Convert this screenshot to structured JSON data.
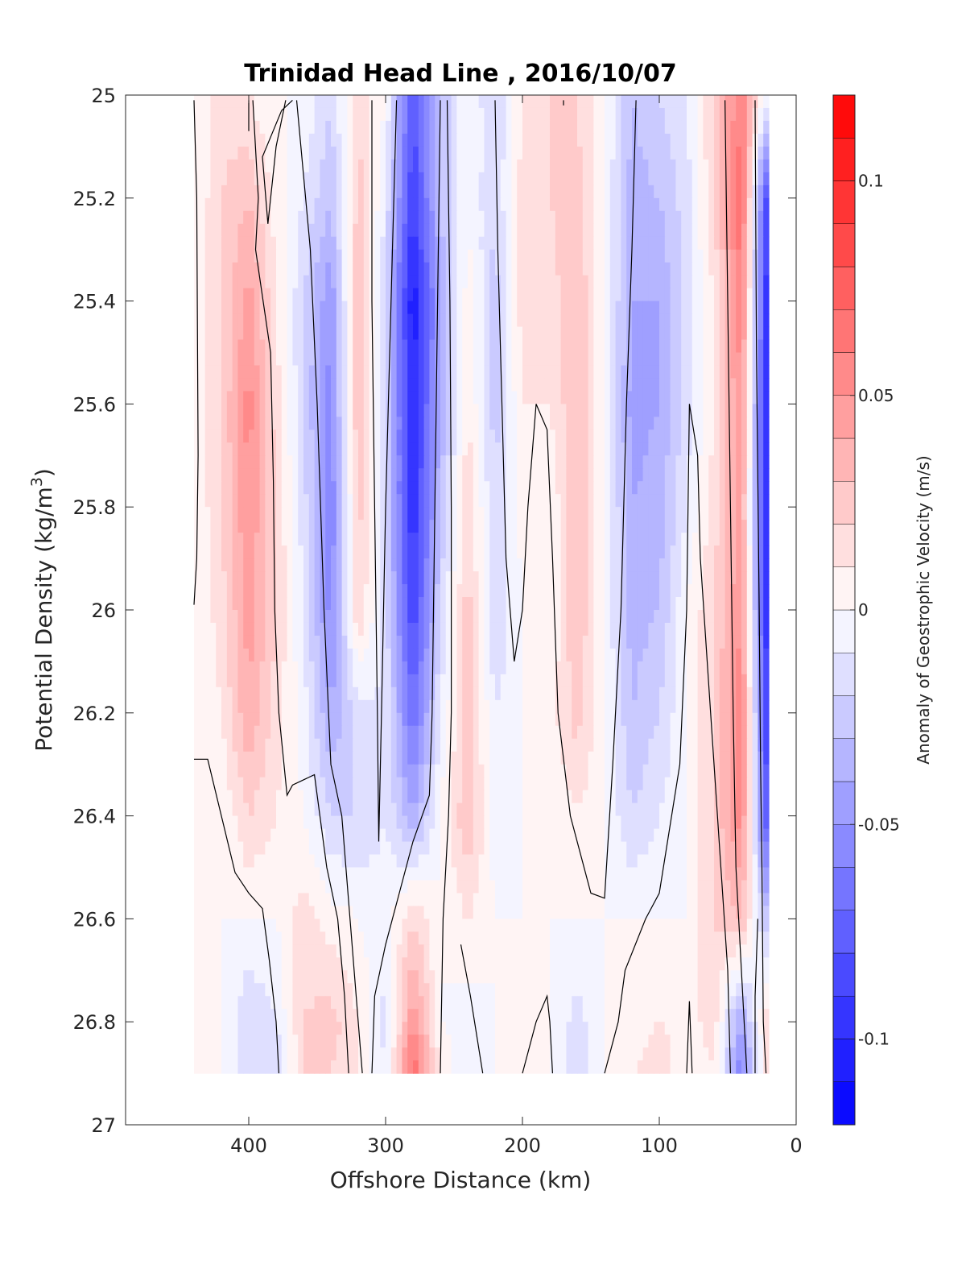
{
  "chart_data": {
    "type": "heatmap",
    "title": "Trinidad Head Line , 2016/10/07",
    "xlabel": "Offshore Distance (km)",
    "ylabel": "Potential Density (kg/m",
    "ylabel_sup": "3",
    "ylabel_close": ")",
    "xlim": [
      490,
      0
    ],
    "ylim": [
      25,
      27
    ],
    "x_reversed": true,
    "y_reversed": true,
    "x_ticks": [
      400,
      300,
      200,
      100,
      0
    ],
    "y_ticks": [
      25,
      25.2,
      25.4,
      25.6,
      25.8,
      26,
      26.2,
      26.4,
      26.6,
      26.8,
      27
    ],
    "colorbar": {
      "label": "Anomaly of Geostrophic Velocity (m/s)",
      "range": [
        -0.12,
        0.12
      ],
      "levels": 24,
      "ticks": [
        0.1,
        0.05,
        0,
        -0.05,
        -0.1
      ],
      "tick_labels": [
        "0.1",
        "0.05",
        "0",
        "-0.05",
        "-0.1"
      ],
      "colors": {
        "positive": "#ff0000",
        "zero": "#ffffff",
        "negative": "#0000ff"
      }
    },
    "data_extent": {
      "x": [
        440,
        20
      ],
      "y": [
        25.0,
        26.9
      ]
    },
    "x": [
      440,
      420,
      400,
      380,
      360,
      340,
      320,
      300,
      280,
      260,
      240,
      220,
      200,
      180,
      160,
      140,
      120,
      100,
      80,
      60,
      40,
      20
    ],
    "y": [
      25.0,
      25.2,
      25.4,
      25.6,
      25.8,
      26.0,
      26.2,
      26.4,
      26.6,
      26.8,
      26.9
    ],
    "values": [
      [
        0,
        0.015,
        0.01,
        0,
        0,
        -0.02,
        0.02,
        0,
        -0.08,
        -0.03,
        0,
        -0.02,
        0.01,
        0.02,
        0.02,
        0,
        -0.03,
        -0.02,
        -0.01,
        0.02,
        0.06,
        -0.01
      ],
      [
        0,
        0.02,
        0.03,
        0.005,
        -0.01,
        -0.03,
        0.025,
        -0.01,
        -0.09,
        -0.03,
        0,
        -0.02,
        0.015,
        0.02,
        0.025,
        0,
        -0.035,
        -0.03,
        -0.015,
        0.02,
        0.07,
        -0.1
      ],
      [
        0,
        0.02,
        0.045,
        0.01,
        -0.02,
        -0.05,
        0.03,
        -0.02,
        -0.11,
        -0.04,
        0.005,
        -0.025,
        0.015,
        0.015,
        0.03,
        0,
        -0.04,
        -0.04,
        -0.015,
        0.01,
        0.06,
        -0.11
      ],
      [
        0,
        0.02,
        0.055,
        0.015,
        -0.02,
        -0.055,
        0.03,
        -0.02,
        -0.1,
        -0.04,
        0.01,
        -0.025,
        0.01,
        0.01,
        0.03,
        0,
        -0.045,
        -0.04,
        -0.015,
        0.01,
        0.05,
        -0.11
      ],
      [
        0,
        0.02,
        0.05,
        0.02,
        -0.015,
        -0.06,
        0.025,
        -0.02,
        -0.1,
        -0.03,
        0.02,
        -0.02,
        0.005,
        0,
        0.03,
        0,
        -0.04,
        -0.035,
        -0.01,
        0.015,
        0.045,
        -0.11
      ],
      [
        0,
        0.015,
        0.045,
        0.02,
        -0.01,
        -0.055,
        0.02,
        -0.015,
        -0.09,
        -0.02,
        0.025,
        -0.02,
        0,
        0,
        0.03,
        0,
        -0.035,
        -0.03,
        0,
        0.02,
        0.05,
        -0.11
      ],
      [
        0,
        0.01,
        0.04,
        0.015,
        -0.005,
        -0.04,
        -0.015,
        -0.01,
        -0.07,
        -0.01,
        0.025,
        -0.01,
        0,
        0.005,
        0.025,
        0,
        -0.03,
        -0.02,
        0,
        0.02,
        0.06,
        -0.1
      ],
      [
        0,
        0,
        0.02,
        0.01,
        0,
        -0.02,
        -0.02,
        -0.01,
        -0.04,
        0,
        0.03,
        -0.005,
        0,
        0,
        0.01,
        0,
        -0.02,
        -0.01,
        0,
        0.02,
        0.055,
        -0.09
      ],
      [
        0,
        0,
        0,
        0,
        0.015,
        0.005,
        0,
        -0.005,
        0.02,
        0,
        0.01,
        0,
        0,
        0,
        0,
        0,
        0,
        0,
        0,
        0.02,
        0.03,
        -0.03
      ],
      [
        0,
        0,
        -0.02,
        -0.01,
        0.02,
        0.025,
        0.01,
        -0.015,
        0.05,
        0,
        -0.005,
        0,
        0,
        0,
        -0.015,
        0,
        0,
        0.01,
        0.005,
        0.015,
        -0.04,
        0.02
      ],
      [
        0,
        0,
        -0.02,
        -0.02,
        0.02,
        0.02,
        0.01,
        -0.01,
        0.07,
        0.01,
        -0.01,
        0,
        0,
        0,
        -0.02,
        0,
        0.01,
        0.02,
        0,
        0.01,
        -0.06,
        0.02
      ]
    ],
    "zero_contours": [
      [
        [
          440,
          25.01
        ],
        [
          438,
          25.2
        ],
        [
          437,
          25.7
        ],
        [
          438,
          25.9
        ],
        [
          440,
          25.99
        ]
      ],
      [
        [
          440,
          26.29
        ],
        [
          430,
          26.29
        ],
        [
          420,
          26.4
        ],
        [
          410,
          26.51
        ],
        [
          400,
          26.55
        ],
        [
          390,
          26.58
        ],
        [
          385,
          26.68
        ],
        [
          380,
          26.8
        ],
        [
          378,
          26.9
        ]
      ],
      [
        [
          400,
          25.01
        ],
        [
          400,
          25.07
        ]
      ],
      [
        [
          397,
          25.01
        ],
        [
          393,
          25.2
        ],
        [
          395,
          25.3
        ],
        [
          384,
          25.5
        ],
        [
          382,
          25.75
        ],
        [
          381,
          26.0
        ],
        [
          378,
          26.2
        ],
        [
          372,
          26.36
        ],
        [
          368,
          26.34
        ],
        [
          352,
          26.32
        ],
        [
          343,
          26.5
        ],
        [
          335,
          26.6
        ],
        [
          330,
          26.75
        ],
        [
          327,
          26.9
        ]
      ],
      [
        [
          373,
          25.01
        ],
        [
          380,
          25.1
        ],
        [
          386,
          25.25
        ],
        [
          390,
          25.12
        ],
        [
          376,
          25.03
        ],
        [
          368,
          25.01
        ]
      ],
      [
        [
          365,
          25.01
        ],
        [
          355,
          25.3
        ],
        [
          350,
          25.6
        ],
        [
          345,
          26.0
        ],
        [
          340,
          26.3
        ],
        [
          332,
          26.4
        ],
        [
          320,
          26.8
        ],
        [
          317,
          26.9
        ]
      ],
      [
        [
          310,
          25.01
        ],
        [
          310,
          25.4
        ],
        [
          308,
          25.8
        ],
        [
          306,
          26.2
        ],
        [
          305,
          26.45
        ],
        [
          303,
          26.2
        ],
        [
          300,
          25.8
        ],
        [
          295,
          25.3
        ],
        [
          292,
          25.01
        ]
      ],
      [
        [
          260,
          25.01
        ],
        [
          262,
          25.4
        ],
        [
          264,
          25.8
        ],
        [
          266,
          26.2
        ],
        [
          268,
          26.36
        ],
        [
          280,
          26.45
        ],
        [
          290,
          26.55
        ],
        [
          300,
          26.65
        ],
        [
          308,
          26.75
        ],
        [
          310,
          26.9
        ]
      ],
      [
        [
          255,
          25.01
        ],
        [
          253,
          25.4
        ],
        [
          252,
          25.8
        ],
        [
          252,
          26.2
        ],
        [
          254,
          26.4
        ],
        [
          258,
          26.6
        ],
        [
          260,
          26.9
        ]
      ],
      [
        [
          245,
          26.65
        ],
        [
          238,
          26.75
        ],
        [
          232,
          26.85
        ],
        [
          229,
          26.9
        ]
      ],
      [
        [
          220,
          25.01
        ],
        [
          218,
          25.3
        ],
        [
          215,
          25.6
        ],
        [
          212,
          25.9
        ],
        [
          206,
          26.1
        ],
        [
          200,
          26.0
        ],
        [
          196,
          25.8
        ],
        [
          190,
          25.6
        ],
        [
          182,
          25.65
        ],
        [
          178,
          25.9
        ],
        [
          174,
          26.2
        ],
        [
          165,
          26.4
        ],
        [
          150,
          26.55
        ],
        [
          140,
          26.56
        ],
        [
          134,
          26.3
        ],
        [
          128,
          26.0
        ],
        [
          124,
          25.6
        ],
        [
          120,
          25.3
        ],
        [
          117,
          25.01
        ]
      ],
      [
        [
          200,
          26.9
        ],
        [
          190,
          26.8
        ],
        [
          182,
          26.75
        ],
        [
          180,
          26.8
        ],
        [
          178,
          26.9
        ]
      ],
      [
        [
          170,
          25.01
        ],
        [
          170,
          25.02
        ]
      ],
      [
        [
          140,
          26.9
        ],
        [
          130,
          26.8
        ],
        [
          125,
          26.7
        ],
        [
          110,
          26.6
        ],
        [
          100,
          26.55
        ],
        [
          85,
          26.3
        ],
        [
          80,
          26.0
        ],
        [
          78,
          25.6
        ],
        [
          72,
          25.7
        ],
        [
          70,
          25.9
        ],
        [
          65,
          26.1
        ],
        [
          60,
          26.3
        ],
        [
          55,
          26.5
        ],
        [
          50,
          26.7
        ],
        [
          48,
          26.9
        ]
      ],
      [
        [
          80,
          26.9
        ],
        [
          78,
          26.76
        ],
        [
          76,
          26.9
        ]
      ],
      [
        [
          52,
          25.01
        ],
        [
          50,
          25.4
        ],
        [
          48,
          25.8
        ],
        [
          46,
          26.2
        ],
        [
          44,
          26.5
        ],
        [
          40,
          26.7
        ],
        [
          36,
          26.9
        ]
      ],
      [
        [
          30,
          25.01
        ],
        [
          29,
          25.5
        ],
        [
          27,
          26.0
        ],
        [
          26,
          26.3
        ],
        [
          25,
          26.5
        ],
        [
          24,
          26.8
        ],
        [
          22,
          26.9
        ]
      ],
      [
        [
          30,
          26.9
        ],
        [
          30,
          26.75
        ],
        [
          28,
          26.6
        ]
      ]
    ]
  }
}
